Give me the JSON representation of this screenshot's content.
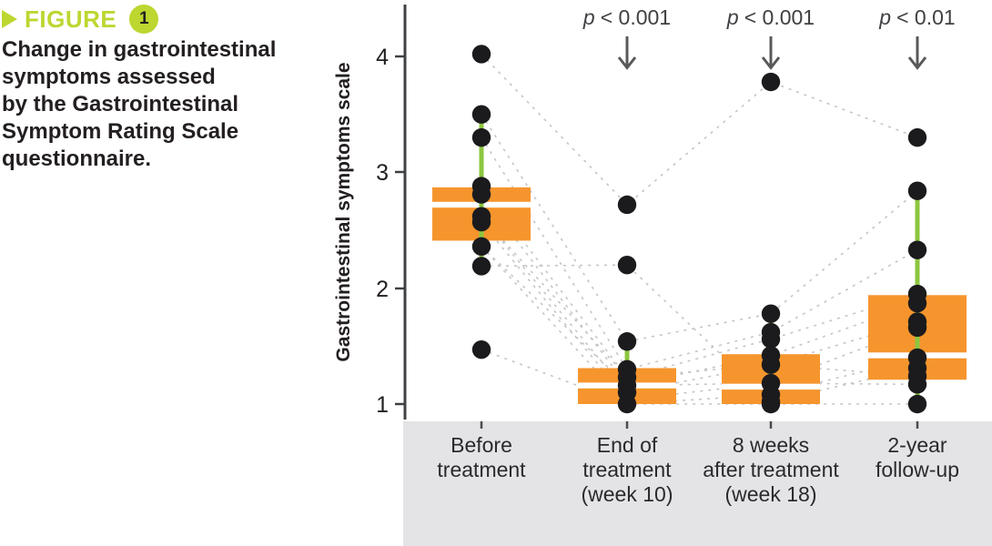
{
  "figure_header": {
    "label": "FIGURE",
    "number": "1"
  },
  "figure_title_lines": [
    "Change in gastrointestinal",
    "symptoms assessed",
    "by the Gastrointestinal",
    "Symptom Rating Scale",
    "questionnaire."
  ],
  "chart_data": {
    "type": "boxplot",
    "title": "",
    "xlabel": "",
    "ylabel": "Gastrointestinal symptoms scale",
    "ylim": [
      0.87,
      4.45
    ],
    "yticks": [
      4,
      3,
      2,
      1
    ],
    "grid": false,
    "legend": "none",
    "categories": [
      "Before treatment",
      "End of treatment (week 10)",
      "8 weeks after treatment (week 18)",
      "2-year follow-up"
    ],
    "category_lines": [
      [
        "Before",
        "treatment"
      ],
      [
        "End of",
        "treatment",
        "(week 10)"
      ],
      [
        "8 weeks",
        "after treatment",
        "(week 18)"
      ],
      [
        "2-year",
        "follow-up"
      ]
    ],
    "p_annotations": [
      {
        "column": 1,
        "symbol": "p",
        "comparison": "< 0.001"
      },
      {
        "column": 2,
        "symbol": "p",
        "comparison": "< 0.001"
      },
      {
        "column": 3,
        "symbol": "p",
        "comparison": "< 0.01"
      }
    ],
    "boxes": [
      {
        "category": "Before treatment",
        "q3": 2.87,
        "median": 2.72,
        "q1": 2.41,
        "whisker_high": 3.5,
        "whisker_low": 2.19
      },
      {
        "category": "End of treatment (week 10)",
        "q3": 1.31,
        "median": 1.16,
        "q1": 1.0,
        "whisker_high": 1.54,
        "whisker_low": 1.0
      },
      {
        "category": "8 weeks after treatment (week 18)",
        "q3": 1.43,
        "median": 1.15,
        "q1": 1.0,
        "whisker_high": 1.78,
        "whisker_low": 1.0
      },
      {
        "category": "2-year follow-up",
        "q3": 1.94,
        "median": 1.42,
        "q1": 1.21,
        "whisker_high": 2.84,
        "whisker_low": 1.0
      }
    ],
    "points": [
      [
        4.02,
        3.5,
        3.3,
        2.88,
        2.81,
        2.62,
        2.57,
        2.36,
        2.19,
        1.47
      ],
      [
        2.72,
        2.2,
        1.54,
        1.3,
        1.23,
        1.16,
        1.1,
        1.0
      ],
      [
        3.78,
        1.78,
        1.62,
        1.56,
        1.42,
        1.34,
        1.18,
        1.08,
        1.02,
        1.0
      ],
      [
        3.3,
        2.84,
        2.33,
        1.95,
        1.87,
        1.71,
        1.66,
        1.4,
        1.31,
        1.24,
        1.17,
        1.0
      ]
    ],
    "subject_paths": [
      [
        4.02,
        2.72,
        3.78,
        3.3
      ],
      [
        3.5,
        1.54,
        1.78,
        2.84
      ],
      [
        3.3,
        1.3,
        1.62,
        2.33
      ],
      [
        2.88,
        1.23,
        1.56,
        1.95
      ],
      [
        2.81,
        1.16,
        1.42,
        1.87
      ],
      [
        2.62,
        1.1,
        1.34,
        1.71
      ],
      [
        2.57,
        1.04,
        1.18,
        1.66
      ],
      [
        2.36,
        1.0,
        1.08,
        1.4
      ],
      [
        2.19,
        2.2,
        1.02,
        1.31
      ],
      [
        2.62,
        1.23,
        1.34,
        1.24
      ],
      [
        2.36,
        1.16,
        1.18,
        1.17
      ],
      [
        1.47,
        1.0,
        1.0,
        1.0
      ]
    ],
    "colors": {
      "box": "#F6952D",
      "whisker": "#8CC63F",
      "point": "#1B1B1D",
      "median": "#FFFFFF",
      "connector": "#C5C5CA",
      "band": "#E4E4E6",
      "accent_lime": "#BED630",
      "annotation_gray": "#58595B",
      "axis": "#3F4043"
    }
  }
}
